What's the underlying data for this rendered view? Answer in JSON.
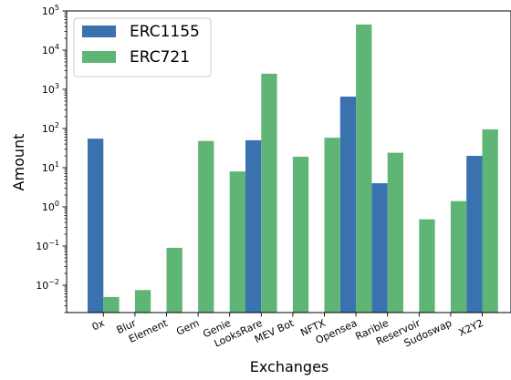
{
  "chart_data": {
    "type": "bar",
    "xlabel": "Exchanges",
    "ylabel": "Amount",
    "yscale": "log",
    "ylim": [
      0.002,
      100000
    ],
    "yticks": [
      {
        "value": 0.01,
        "base": "10",
        "exp": "−2"
      },
      {
        "value": 0.1,
        "base": "10",
        "exp": "−1"
      },
      {
        "value": 1,
        "base": "10",
        "exp": "0"
      },
      {
        "value": 10,
        "base": "10",
        "exp": "1"
      },
      {
        "value": 100,
        "base": "10",
        "exp": "2"
      },
      {
        "value": 1000,
        "base": "10",
        "exp": "3"
      },
      {
        "value": 10000,
        "base": "10",
        "exp": "4"
      },
      {
        "value": 100000,
        "base": "10",
        "exp": "5"
      }
    ],
    "categories": [
      "0x",
      "Blur",
      "Element",
      "Gem",
      "Genie",
      "LooksRare",
      "MEV Bot",
      "NFTX",
      "Opensea",
      "Rarible",
      "Reservoir",
      "Sudoswap",
      "X2Y2"
    ],
    "series": [
      {
        "name": "ERC1155",
        "color": "#3a72b0",
        "values": [
          55,
          null,
          null,
          null,
          null,
          50,
          null,
          null,
          650,
          4,
          null,
          null,
          20
        ]
      },
      {
        "name": "ERC721",
        "color": "#5fb575",
        "values": [
          0.005,
          0.0075,
          0.09,
          48,
          8,
          2500,
          19,
          58,
          45000,
          24,
          0.48,
          1.4,
          95
        ]
      }
    ],
    "legend": {
      "placement": "upper-left"
    },
    "grid": false
  }
}
